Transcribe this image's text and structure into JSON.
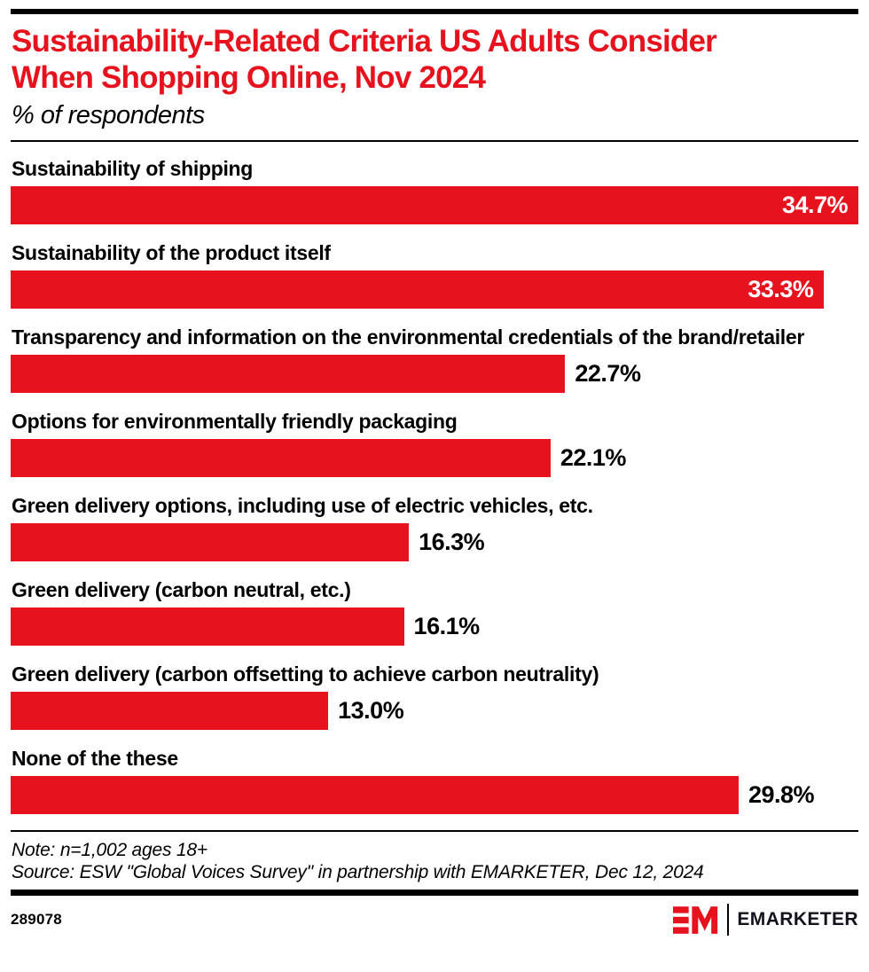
{
  "header": {
    "title_lines": [
      "Sustainability-Related Criteria US Adults Consider",
      "When Shopping Online, Nov 2024"
    ],
    "title_full": "Sustainability-Related Criteria US Adults Consider When Shopping Online, Nov 2024",
    "subtitle": "% of respondents"
  },
  "chart_data": {
    "type": "bar",
    "orientation": "horizontal",
    "title": "Sustainability-Related Criteria US Adults Consider When Shopping Online, Nov 2024",
    "subtitle": "% of respondents",
    "categories": [
      "Sustainability of shipping",
      "Sustainability of the product itself",
      "Transparency and information on the environmental credentials of the brand/retailer",
      "Options for environmentally friendly packaging",
      "Green delivery options, including use of electric vehicles, etc.",
      "Green delivery (carbon neutral, etc.)",
      "Green delivery (carbon offsetting to achieve carbon neutrality)",
      "None of the these"
    ],
    "values": [
      34.7,
      33.3,
      22.7,
      22.1,
      16.3,
      16.1,
      13.0,
      29.8
    ],
    "value_labels": [
      "34.7%",
      "33.3%",
      "22.7%",
      "22.1%",
      "16.3%",
      "16.1%",
      "13.0%",
      "29.8%"
    ],
    "value_label_inside": [
      true,
      true,
      false,
      false,
      false,
      false,
      false,
      false
    ],
    "xlim": [
      0,
      34.7
    ],
    "grid": false,
    "legend": false,
    "bar_color": "#e6131e"
  },
  "footnotes": {
    "note": "Note: n=1,002 ages 18+",
    "source": "Source: ESW \"Global Voices Survey\" in partnership with EMARKETER, Dec 12, 2024"
  },
  "footer": {
    "chart_id": "289078",
    "brand": "EMARKETER"
  },
  "theme": {
    "accent_red": "#e6131e",
    "rule_black": "#000000",
    "background": "#ffffff"
  }
}
